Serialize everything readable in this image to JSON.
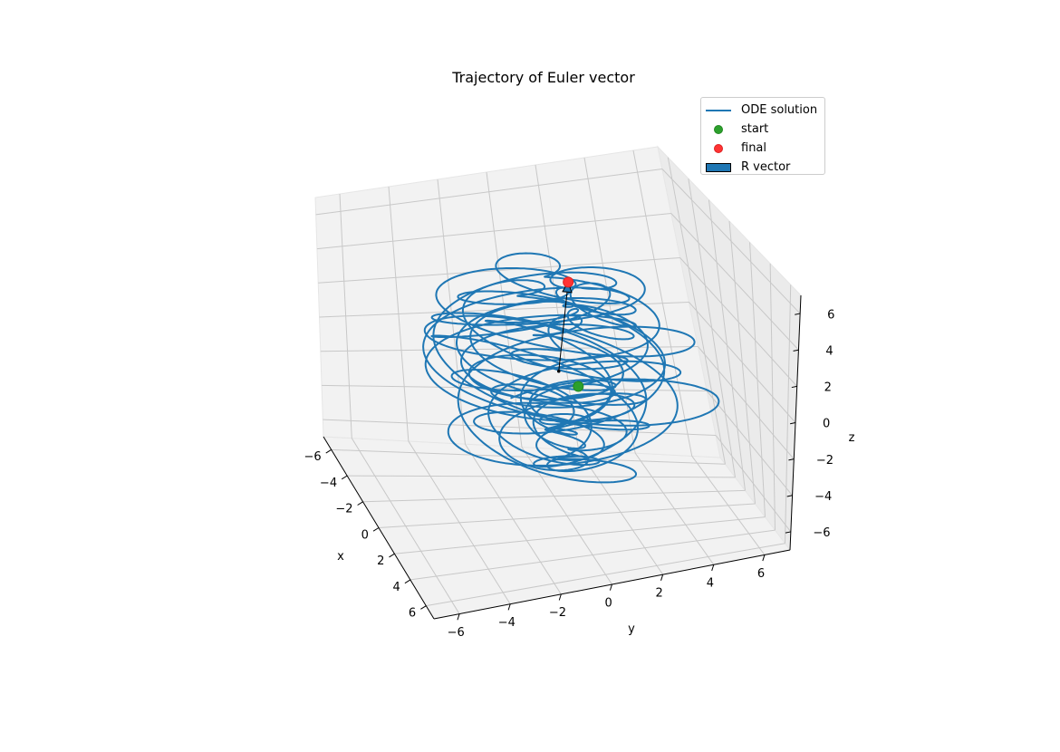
{
  "chart_data": {
    "type": "line3d",
    "title": "Trajectory of Euler vector",
    "xlabel": "x",
    "ylabel": "y",
    "zlabel": "z",
    "xlim": [
      -7,
      7
    ],
    "ylim": [
      -7,
      7
    ],
    "zlim": [
      -7,
      7
    ],
    "xticks": [
      -6,
      -4,
      -2,
      0,
      2,
      4,
      6
    ],
    "yticks": [
      -6,
      -4,
      -2,
      0,
      2,
      4,
      6
    ],
    "zticks": [
      -6,
      -4,
      -2,
      0,
      2,
      4,
      6
    ],
    "xtick_labels": [
      "−6",
      "−4",
      "−2",
      "0",
      "2",
      "4",
      "6"
    ],
    "ytick_labels": [
      "−6",
      "−4",
      "−2",
      "0",
      "2",
      "4",
      "6"
    ],
    "ztick_labels": [
      "−6",
      "−4",
      "−2",
      "0",
      "2",
      "4",
      "6"
    ],
    "grid": true,
    "legend_position": "top-right",
    "series": [
      {
        "name": "ODE solution",
        "kind": "line",
        "color": "#1f77b4",
        "description": "tangled curve confined to radius about 5.5 around the origin"
      },
      {
        "name": "start",
        "kind": "point",
        "color": "#2ca02c",
        "point": [
          0.4,
          0.6,
          -0.6
        ]
      },
      {
        "name": "final",
        "kind": "point",
        "color": "#ff3333",
        "point": [
          0.5,
          0.4,
          4.5
        ]
      },
      {
        "name": "R vector",
        "kind": "arrow",
        "color": "#1f77b4",
        "from": [
          0,
          0,
          0
        ],
        "to": [
          0.5,
          0.4,
          4.5
        ]
      }
    ]
  }
}
